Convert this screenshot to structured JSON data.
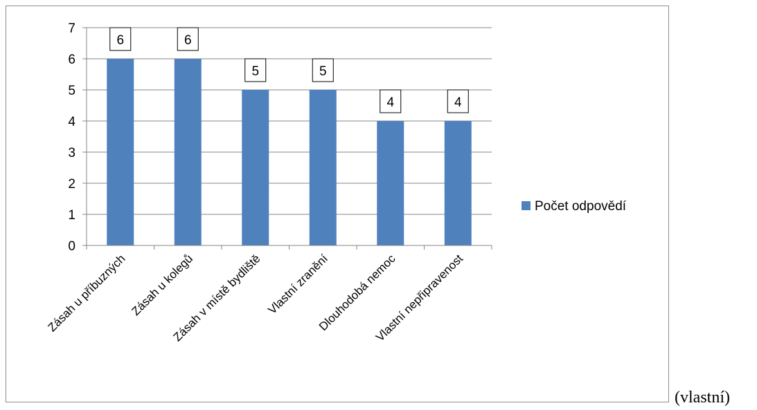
{
  "chart_data": {
    "type": "bar",
    "categories": [
      "Zásah u příbuzných",
      "Zásah u kolegů",
      "Zásah v místě bydliště",
      "Vlastní zranění",
      "Dlouhodobá nemoc",
      "Vlastní nepřipravenost"
    ],
    "series": [
      {
        "name": "Počet odpovědí",
        "values": [
          6,
          6,
          5,
          5,
          4,
          4
        ],
        "color": "#4f81bd"
      }
    ],
    "ylim": [
      0,
      7
    ],
    "yticks": [
      0,
      1,
      2,
      3,
      4,
      5,
      6,
      7
    ],
    "grid": true,
    "legend_position": "right",
    "data_labels": true
  },
  "source_note": "(vlastní)"
}
